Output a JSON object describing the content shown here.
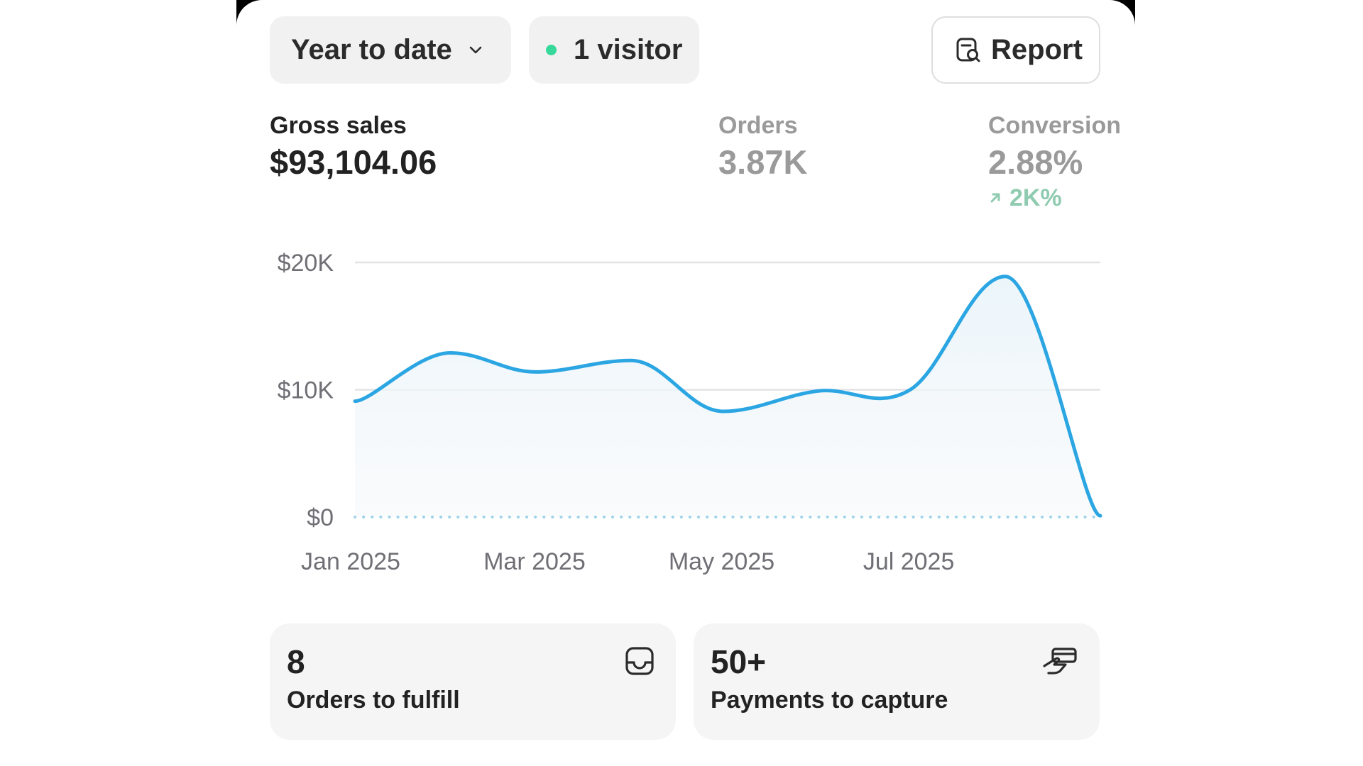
{
  "toolbar": {
    "date_range_label": "Year to date",
    "visitors_label": "1 visitor",
    "report_label": "Report",
    "icons": {
      "date_chevron": "chevron-down-icon",
      "visitor_dot": "live-dot-icon",
      "report": "report-search-icon"
    },
    "colors": {
      "live_dot": "#36d99a"
    }
  },
  "metrics": {
    "gross_sales": {
      "label": "Gross sales",
      "value": "$93,104.06"
    },
    "orders": {
      "label": "Orders",
      "value": "3.87K"
    },
    "conversion": {
      "label": "Conversion",
      "value": "2.88%",
      "delta": "2K%",
      "delta_direction": "up"
    }
  },
  "chart_data": {
    "type": "area",
    "x": [
      "2025-01-01",
      "2025-02-01",
      "2025-03-01",
      "2025-04-01",
      "2025-05-01",
      "2025-06-01",
      "2025-07-01",
      "2025-08-01",
      "2025-09-01"
    ],
    "series": [
      {
        "values": [
          9100,
          12900,
          11400,
          12300,
          8300,
          9900,
          10000,
          18900,
          100
        ]
      }
    ],
    "baseline_values": [
      0,
      0,
      0,
      0,
      0,
      0,
      0,
      0,
      0
    ],
    "x_ticks": [
      "Jan 2025",
      "Mar 2025",
      "May 2025",
      "Jul 2025"
    ],
    "y_ticks": [
      "$0",
      "$10K",
      "$20K"
    ],
    "y_tick_values": [
      0,
      10000,
      20000
    ],
    "ylim": [
      0,
      20000
    ],
    "grid": true,
    "colors": {
      "line": "#2ba6e3",
      "baseline": "#9fd3e8",
      "grid": "#e3e3e6"
    }
  },
  "cards": [
    {
      "count": "8",
      "caption": "Orders to fulfill",
      "icon": "inbox-tray-icon"
    },
    {
      "count": "50+",
      "caption": "Payments to capture",
      "icon": "hand-payment-icon"
    }
  ]
}
